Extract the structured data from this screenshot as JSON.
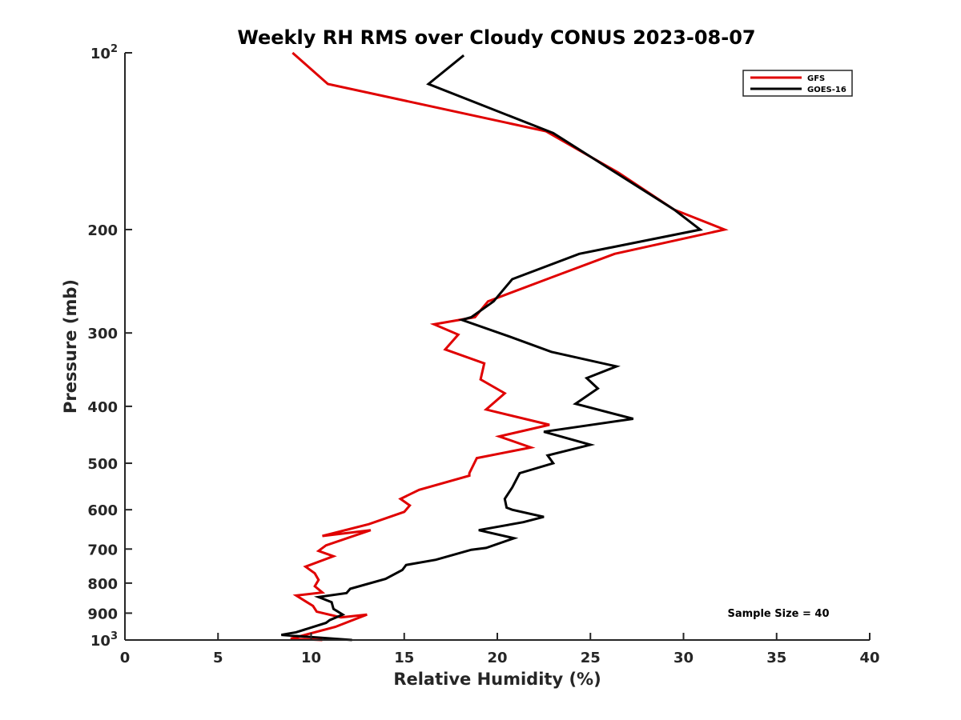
{
  "chart_data": {
    "type": "line",
    "title": "Weekly RH RMS over Cloudy CONUS 2023-08-07",
    "xlabel": "Relative Humidity (%)",
    "ylabel": "Pressure (mb)",
    "xlim": [
      0,
      40
    ],
    "ylim": [
      1000,
      100
    ],
    "yscale": "log",
    "grid": false,
    "legend_position": "top-right",
    "x_ticks": [
      0,
      5,
      10,
      15,
      20,
      25,
      30,
      35,
      40
    ],
    "x_tick_labels": [
      "0",
      "5",
      "10",
      "15",
      "20",
      "25",
      "30",
      "35",
      "40"
    ],
    "y_ticks": [
      100,
      200,
      300,
      400,
      500,
      600,
      700,
      800,
      900,
      1000
    ],
    "y_tick_labels": [
      {
        "base": "10",
        "exp": "2"
      },
      {
        "base": "200"
      },
      {
        "base": "300"
      },
      {
        "base": "400"
      },
      {
        "base": "500"
      },
      {
        "base": "600"
      },
      {
        "base": "700"
      },
      {
        "base": "800"
      },
      {
        "base": "900"
      },
      {
        "base": "10",
        "exp": "3"
      }
    ],
    "annotation": "Sample Size = 40",
    "series": [
      {
        "name": "GFS",
        "color": "#e00000",
        "x": [
          9.0,
          10.9,
          22.6,
          26.5,
          29.5,
          32.2,
          26.3,
          23.1,
          19.5,
          18.8,
          16.6,
          17.9,
          17.2,
          19.3,
          19.1,
          20.4,
          19.4,
          22.8,
          20.1,
          21.8,
          18.9,
          18.5,
          18.5,
          15.8,
          14.8,
          15.3,
          15.0,
          13.1,
          10.6,
          13.2,
          10.8,
          10.4,
          11.2,
          9.7,
          10.2,
          10.4,
          10.2,
          10.6,
          9.2,
          10.1,
          10.3,
          11.6,
          13.0,
          11.3,
          8.9,
          10.6
        ],
        "y": [
          100,
          113,
          136,
          160,
          185,
          200,
          220,
          240,
          265,
          282,
          290,
          302,
          320,
          338,
          360,
          380,
          405,
          430,
          450,
          470,
          490,
          520,
          525,
          555,
          575,
          590,
          605,
          635,
          665,
          650,
          690,
          705,
          720,
          750,
          770,
          790,
          810,
          830,
          840,
          875,
          895,
          915,
          905,
          950,
          995,
          1000
        ]
      },
      {
        "name": "GOES-16",
        "color": "#000000",
        "x": [
          18.2,
          16.3,
          23.0,
          29.5,
          30.9,
          24.4,
          20.8,
          19.8,
          18.6,
          18.1,
          20.5,
          22.9,
          26.4,
          24.8,
          25.4,
          24.2,
          27.3,
          22.5,
          25.0,
          22.7,
          23.0,
          21.2,
          20.8,
          20.4,
          20.5,
          20.8,
          22.5,
          21.4,
          19.0,
          20.9,
          19.4,
          18.6,
          16.7,
          15.1,
          14.9,
          14.0,
          12.1,
          11.9,
          10.4,
          11.1,
          11.2,
          11.7,
          11.0,
          10.8,
          9.2,
          8.4,
          12.2
        ],
        "y": [
          101,
          113,
          137,
          185,
          200,
          220,
          243,
          265,
          282,
          285,
          303,
          323,
          342,
          358,
          373,
          396,
          420,
          442,
          465,
          485,
          500,
          520,
          550,
          575,
          595,
          600,
          617,
          630,
          650,
          671,
          697,
          702,
          730,
          745,
          760,
          787,
          818,
          832,
          845,
          862,
          885,
          905,
          925,
          935,
          970,
          980,
          1000
        ]
      }
    ]
  }
}
